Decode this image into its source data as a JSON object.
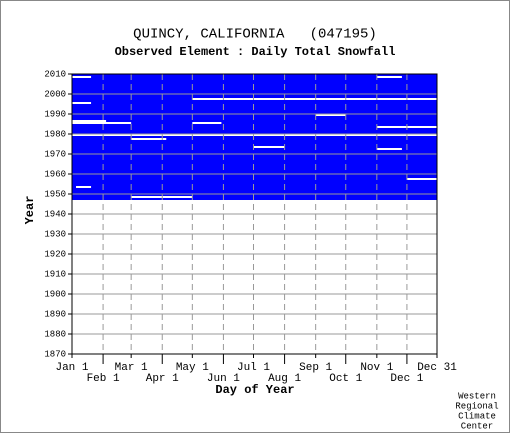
{
  "chart_data": {
    "type": "coverage",
    "title": "QUINCY, CALIFORNIA   (047195)",
    "subtitle": "Observed Element : Daily Total Snowfall",
    "x_label": "Day of Year",
    "y_label": "Year",
    "color": "#0000ff",
    "xlim": [
      1,
      365
    ],
    "ylim": [
      1870,
      2010
    ],
    "xticks": [
      {
        "value": 1,
        "label": "Jan 1"
      },
      {
        "value": 32,
        "label": "Feb 1"
      },
      {
        "value": 60,
        "label": "Mar 1"
      },
      {
        "value": 91,
        "label": "Apr 1"
      },
      {
        "value": 121,
        "label": "May 1"
      },
      {
        "value": 152,
        "label": "Jun 1"
      },
      {
        "value": 182,
        "label": "Jul 1"
      },
      {
        "value": 213,
        "label": "Aug 1"
      },
      {
        "value": 244,
        "label": "Sep 1"
      },
      {
        "value": 274,
        "label": "Oct 1"
      },
      {
        "value": 305,
        "label": "Nov 1"
      },
      {
        "value": 335,
        "label": "Dec 1"
      },
      {
        "value": 365,
        "label": "Dec 31"
      }
    ],
    "yticks": [
      1870,
      1880,
      1890,
      1900,
      1910,
      1920,
      1930,
      1940,
      1950,
      1960,
      1970,
      1980,
      1990,
      2000,
      2010
    ],
    "grid": true,
    "coverage": {
      "from": 1947,
      "to": 2010
    },
    "gaps": [
      {
        "year": 1979,
        "start": 1,
        "end": 365
      },
      {
        "year": 1985,
        "start": 1,
        "end": 60
      },
      {
        "year": 1986,
        "start": 1,
        "end": 35
      },
      {
        "year": 1983,
        "start": 305,
        "end": 365
      },
      {
        "year": 1997,
        "start": 121,
        "end": 365
      },
      {
        "year": 1995,
        "start": 1,
        "end": 20
      },
      {
        "year": 1953,
        "start": 5,
        "end": 20
      },
      {
        "year": 1977,
        "start": 60,
        "end": 95
      },
      {
        "year": 1972,
        "start": 305,
        "end": 330
      },
      {
        "year": 1957,
        "start": 335,
        "end": 365
      },
      {
        "year": 1985,
        "start": 121,
        "end": 150
      },
      {
        "year": 1973,
        "start": 182,
        "end": 213
      },
      {
        "year": 1989,
        "start": 244,
        "end": 274
      },
      {
        "year": 2008,
        "start": 1,
        "end": 20
      },
      {
        "year": 2008,
        "start": 305,
        "end": 330
      },
      {
        "year": 1948,
        "start": 60,
        "end": 121
      }
    ],
    "credit": [
      "Western",
      "Regional",
      "Climate",
      "Center"
    ]
  }
}
